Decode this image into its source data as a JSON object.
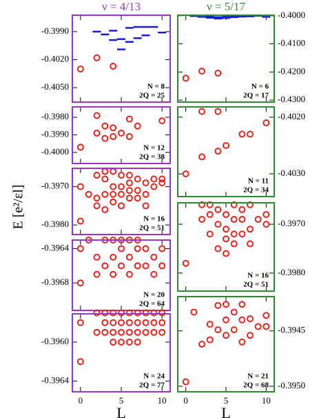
{
  "ylabel": "E [e²/εl]",
  "column_titles": [
    {
      "text": "ν = 4/13",
      "color": "#9933cc"
    },
    {
      "text": "ν = 5/17",
      "color": "#2e8b2e"
    }
  ],
  "chart_data": [
    {
      "type": "scatter",
      "frame_color": "#9933cc",
      "xlim": [
        -1,
        11
      ],
      "xticks": [
        0,
        5,
        10
      ],
      "ylim": [
        -0.40654,
        -0.39724
      ],
      "yticks": [
        {
          "value": -0.399,
          "label": "-0.3990"
        },
        {
          "value": -0.402,
          "label": "-0.4020"
        },
        {
          "value": -0.405,
          "label": "-0.4050"
        }
      ],
      "annotations": [
        "N = 8",
        "2Q = 25"
      ],
      "series": [
        {
          "marker": "circle",
          "color": "#e8231a",
          "x": [
            0,
            2,
            4
          ],
          "values": [
            -0.403,
            -0.4018,
            -0.4027
          ]
        },
        {
          "marker": "dash",
          "color": "#1a1adf",
          "x": [
            2,
            3,
            4,
            4,
            5,
            5,
            6,
            6,
            7,
            7,
            8,
            8,
            9,
            10
          ],
          "values": [
            -0.399,
            -0.3993,
            -0.3999,
            -0.3989,
            -0.3998,
            -0.4009,
            -0.3986,
            -0.4001,
            -0.3985,
            -0.3997,
            -0.3985,
            -0.3994,
            -0.3985,
            -0.3991
          ]
        }
      ]
    },
    {
      "type": "scatter",
      "frame_color": "#9933cc",
      "xlim": [
        -1,
        11
      ],
      "xticks": [
        0,
        5,
        10
      ],
      "ylim": [
        -0.40063,
        -0.39741
      ],
      "yticks": [
        {
          "value": -0.398,
          "label": "-0.3980"
        },
        {
          "value": -0.399,
          "label": "-0.3990"
        },
        {
          "value": -0.4,
          "label": "-0.4000"
        }
      ],
      "annotations": [
        "N = 12",
        "2Q = 38"
      ],
      "series": [
        {
          "marker": "circle",
          "color": "#e8231a",
          "x": [
            0,
            2,
            2,
            3,
            3,
            4,
            4,
            5,
            6,
            6,
            7,
            10
          ],
          "values": [
            -0.3997,
            -0.3979,
            -0.3989,
            -0.3985,
            -0.3992,
            -0.3986,
            -0.3991,
            -0.3989,
            -0.3981,
            -0.3991,
            -0.3985,
            -0.3982
          ]
        }
      ]
    },
    {
      "type": "scatter",
      "frame_color": "#9933cc",
      "xlim": [
        -1,
        11
      ],
      "xticks": [
        0,
        5,
        10
      ],
      "ylim": [
        -0.39825,
        -0.39652
      ],
      "yticks": [
        {
          "value": -0.397,
          "label": "-0.3970"
        },
        {
          "value": -0.398,
          "label": "-0.3980"
        }
      ],
      "annotations": [
        "N = 16",
        "2Q = 51"
      ],
      "series": [
        {
          "marker": "circle",
          "color": "#e8231a",
          "x": [
            0,
            0,
            1,
            2,
            2,
            2,
            3,
            3,
            3,
            3,
            4,
            4,
            4,
            4,
            5,
            5,
            5,
            5,
            6,
            6,
            6,
            6,
            7,
            7,
            7,
            8,
            8,
            8,
            9,
            9,
            10,
            10
          ],
          "values": [
            -0.397,
            -0.3979,
            -0.3972,
            -0.3967,
            -0.3973,
            -0.3975,
            -0.3966,
            -0.3968,
            -0.3972,
            -0.3976,
            -0.3966,
            -0.397,
            -0.3972,
            -0.3974,
            -0.3967,
            -0.397,
            -0.3972,
            -0.3975,
            -0.3967,
            -0.3969,
            -0.3971,
            -0.3973,
            -0.3968,
            -0.3971,
            -0.3973,
            -0.3969,
            -0.3972,
            -0.3975,
            -0.3968,
            -0.397,
            -0.3968,
            -0.3969
          ]
        }
      ]
    },
    {
      "type": "scatter",
      "frame_color": "#9933cc",
      "xlim": [
        -1,
        11
      ],
      "xticks": [
        0,
        5,
        10
      ],
      "ylim": [
        -0.39712,
        -0.3963
      ],
      "yticks": [
        {
          "value": -0.3964,
          "label": "-0.3964"
        },
        {
          "value": -0.3968,
          "label": "-0.3968"
        }
      ],
      "annotations": [
        "N = 20",
        "2Q = 64"
      ],
      "series": [
        {
          "marker": "circle",
          "color": "#e8231a",
          "x": [
            0,
            0,
            1,
            2,
            2,
            3,
            3,
            4,
            4,
            4,
            5,
            5,
            5,
            6,
            6,
            6,
            7,
            7,
            7,
            8,
            8,
            9,
            9,
            10,
            10
          ],
          "values": [
            -0.3964,
            -0.3968,
            -0.3963,
            -0.3965,
            -0.3967,
            -0.3963,
            -0.3966,
            -0.3963,
            -0.3965,
            -0.3967,
            -0.3963,
            -0.3964,
            -0.3966,
            -0.3963,
            -0.3965,
            -0.3967,
            -0.3963,
            -0.3964,
            -0.3966,
            -0.3964,
            -0.3966,
            -0.3965,
            -0.3967,
            -0.3964,
            -0.3966
          ]
        }
      ]
    },
    {
      "type": "scatter",
      "frame_color": "#9933cc",
      "xlim": [
        -1,
        11
      ],
      "xticks": [
        0,
        5,
        10
      ],
      "xlabel": "L",
      "ylim": [
        -0.39651,
        -0.39571
      ],
      "yticks": [
        {
          "value": -0.396,
          "label": "-0.3960"
        },
        {
          "value": -0.3964,
          "label": "-0.3964"
        }
      ],
      "annotations": [
        "N = 24",
        "2Q = 77"
      ],
      "series": [
        {
          "marker": "circle",
          "color": "#e8231a",
          "x": [
            0,
            0,
            2,
            2,
            3,
            3,
            3,
            4,
            4,
            4,
            4,
            5,
            5,
            5,
            5,
            6,
            6,
            6,
            6,
            7,
            7,
            7,
            7,
            8,
            8,
            8,
            9,
            9,
            9,
            10,
            10,
            10
          ],
          "values": [
            -0.3958,
            -0.3962,
            -0.3957,
            -0.3959,
            -0.3957,
            -0.3958,
            -0.3959,
            -0.3957,
            -0.3958,
            -0.3959,
            -0.396,
            -0.3957,
            -0.3958,
            -0.3959,
            -0.396,
            -0.3957,
            -0.3958,
            -0.3959,
            -0.396,
            -0.3957,
            -0.3958,
            -0.3959,
            -0.396,
            -0.3957,
            -0.3958,
            -0.3959,
            -0.3957,
            -0.3958,
            -0.3959,
            -0.3957,
            -0.3958,
            -0.3959
          ]
        }
      ]
    },
    {
      "type": "scatter",
      "frame_color": "#2e8b2e",
      "xlim": [
        -1,
        11
      ],
      "xticks": [
        0,
        5,
        10
      ],
      "ylim": [
        -0.4307,
        -0.3998
      ],
      "yticks": [
        {
          "value": -0.4,
          "label": "-0.4000"
        },
        {
          "value": -0.41,
          "label": "-0.4100"
        },
        {
          "value": -0.42,
          "label": "-0.4200"
        },
        {
          "value": -0.43,
          "label": "-0.4300"
        }
      ],
      "annotations": [
        "N = 6",
        "2Q = 17"
      ],
      "series": [
        {
          "marker": "circle",
          "color": "#e8231a",
          "x": [
            0,
            2,
            4
          ],
          "values": [
            -0.4222,
            -0.4197,
            -0.4204
          ]
        },
        {
          "marker": "dash",
          "color": "#1a1adf",
          "x": [
            1,
            2,
            3,
            3,
            4,
            4,
            5,
            5,
            6,
            6,
            7,
            7,
            8,
            9,
            10
          ],
          "values": [
            -0.4001,
            -0.4004,
            -0.4003,
            -0.4007,
            -0.4005,
            -0.401,
            -0.4002,
            -0.4008,
            -0.4001,
            -0.4005,
            -0.4001,
            -0.4003,
            -0.4002,
            -0.4,
            -0.4004
          ]
        }
      ]
    },
    {
      "type": "scatter",
      "frame_color": "#2e8b2e",
      "xlim": [
        -1,
        11
      ],
      "xticks": [
        0,
        5,
        10
      ],
      "ylim": [
        -0.4034,
        -0.40182
      ],
      "yticks": [
        {
          "value": -0.402,
          "label": "-0.4020"
        },
        {
          "value": -0.403,
          "label": "-0.4030"
        }
      ],
      "annotations": [
        "N = 11",
        "2Q = 34"
      ],
      "series": [
        {
          "marker": "circle",
          "color": "#e8231a",
          "x": [
            0,
            2,
            2,
            4,
            4,
            5,
            7,
            8,
            10
          ],
          "values": [
            -0.403,
            -0.4019,
            -0.4027,
            -0.4019,
            -0.4026,
            -0.4025,
            -0.4023,
            -0.4023,
            -0.4021
          ]
        }
      ]
    },
    {
      "type": "scatter",
      "frame_color": "#2e8b2e",
      "xlim": [
        -1,
        11
      ],
      "xticks": [
        0,
        5,
        10
      ],
      "ylim": [
        -0.39837,
        -0.39656
      ],
      "yticks": [
        {
          "value": -0.397,
          "label": "-0.3970"
        },
        {
          "value": -0.398,
          "label": "-0.3980"
        }
      ],
      "annotations": [
        "N = 16",
        "2Q = 51"
      ],
      "series": [
        {
          "marker": "circle",
          "color": "#e8231a",
          "x": [
            0,
            2,
            2,
            3,
            3,
            3,
            4,
            4,
            4,
            5,
            5,
            5,
            5,
            6,
            6,
            6,
            6,
            7,
            7,
            7,
            8,
            8,
            8,
            9,
            10,
            10
          ],
          "values": [
            -0.3978,
            -0.3966,
            -0.3969,
            -0.3966,
            -0.3968,
            -0.3972,
            -0.3967,
            -0.397,
            -0.3975,
            -0.3968,
            -0.3971,
            -0.3973,
            -0.3976,
            -0.3966,
            -0.3969,
            -0.3972,
            -0.3974,
            -0.3967,
            -0.3969,
            -0.3972,
            -0.3966,
            -0.3971,
            -0.3974,
            -0.3969,
            -0.3968,
            -0.397
          ]
        }
      ]
    },
    {
      "type": "scatter",
      "frame_color": "#2e8b2e",
      "xlim": [
        -1,
        11
      ],
      "xticks": [
        0,
        5,
        10
      ],
      "xlabel": "L",
      "ylim": [
        -0.39505,
        -0.39419
      ],
      "yticks": [
        {
          "value": -0.3945,
          "label": "-0.3945"
        },
        {
          "value": -0.395,
          "label": "-0.3950"
        }
      ],
      "annotations": [
        "N = 21",
        "2Q = 68"
      ],
      "series": [
        {
          "marker": "circle",
          "color": "#e8231a",
          "x": [
            0,
            1,
            2,
            3,
            3,
            4,
            4,
            5,
            5,
            5,
            6,
            6,
            7,
            7,
            7,
            8,
            8,
            9,
            10,
            10
          ],
          "values": [
            -0.39496,
            -0.39433,
            -0.39462,
            -0.39444,
            -0.39458,
            -0.39427,
            -0.39449,
            -0.39426,
            -0.3944,
            -0.39454,
            -0.39433,
            -0.39449,
            -0.39426,
            -0.3944,
            -0.3946,
            -0.39439,
            -0.39454,
            -0.39446,
            -0.39436,
            -0.39446
          ]
        }
      ]
    }
  ]
}
